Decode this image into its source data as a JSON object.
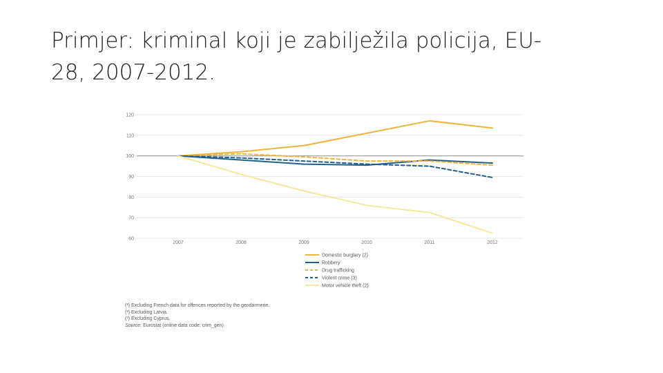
{
  "slide": {
    "title_line1": "Primjer: kriminal koji je zabilježila policija, EU-",
    "title_line2": "28, 2007-2012."
  },
  "chart_data": {
    "type": "line",
    "title": "",
    "xlabel": "",
    "ylabel": "",
    "x": [
      "2007",
      "2008",
      "2009",
      "2010",
      "2011",
      "2012"
    ],
    "ylim": [
      60,
      120
    ],
    "yticks": [
      "120",
      "110",
      "100",
      "90",
      "80",
      "70",
      "60"
    ],
    "grid": true,
    "legend_position": "bottom",
    "series": [
      {
        "name": "Domestic burglary (2)",
        "values": [
          100,
          102,
          105,
          111,
          117,
          113.5
        ],
        "color": "#f0b43c",
        "dash": "solid"
      },
      {
        "name": "Robbery",
        "values": [
          100,
          98,
          96,
          95.5,
          98,
          96.5
        ],
        "color": "#1f5f8b",
        "dash": "solid"
      },
      {
        "name": "Drug trafficking",
        "values": [
          100,
          101,
          99.5,
          97.5,
          97.5,
          95.5
        ],
        "color": "#f0b43c",
        "dash": "dashed"
      },
      {
        "name": "Violent crime (3)",
        "values": [
          100,
          99,
          97.5,
          96,
          95,
          89.5
        ],
        "color": "#1f5f8b",
        "dash": "dashed"
      },
      {
        "name": "Motor vehicle theft (2)",
        "values": [
          100,
          91,
          83,
          76,
          72.5,
          62.5
        ],
        "color": "#f7e8a0",
        "dash": "solid"
      }
    ]
  },
  "footnotes": {
    "note1": "(¹) Excluding French data for offences reported by the gendarmerie.",
    "note2": "(²) Excluding Latvia.",
    "note3": "(³) Excluding Cyprus.",
    "source_label": "Source:",
    "source_text": " Eurostat (online data code: crim_gen)"
  }
}
